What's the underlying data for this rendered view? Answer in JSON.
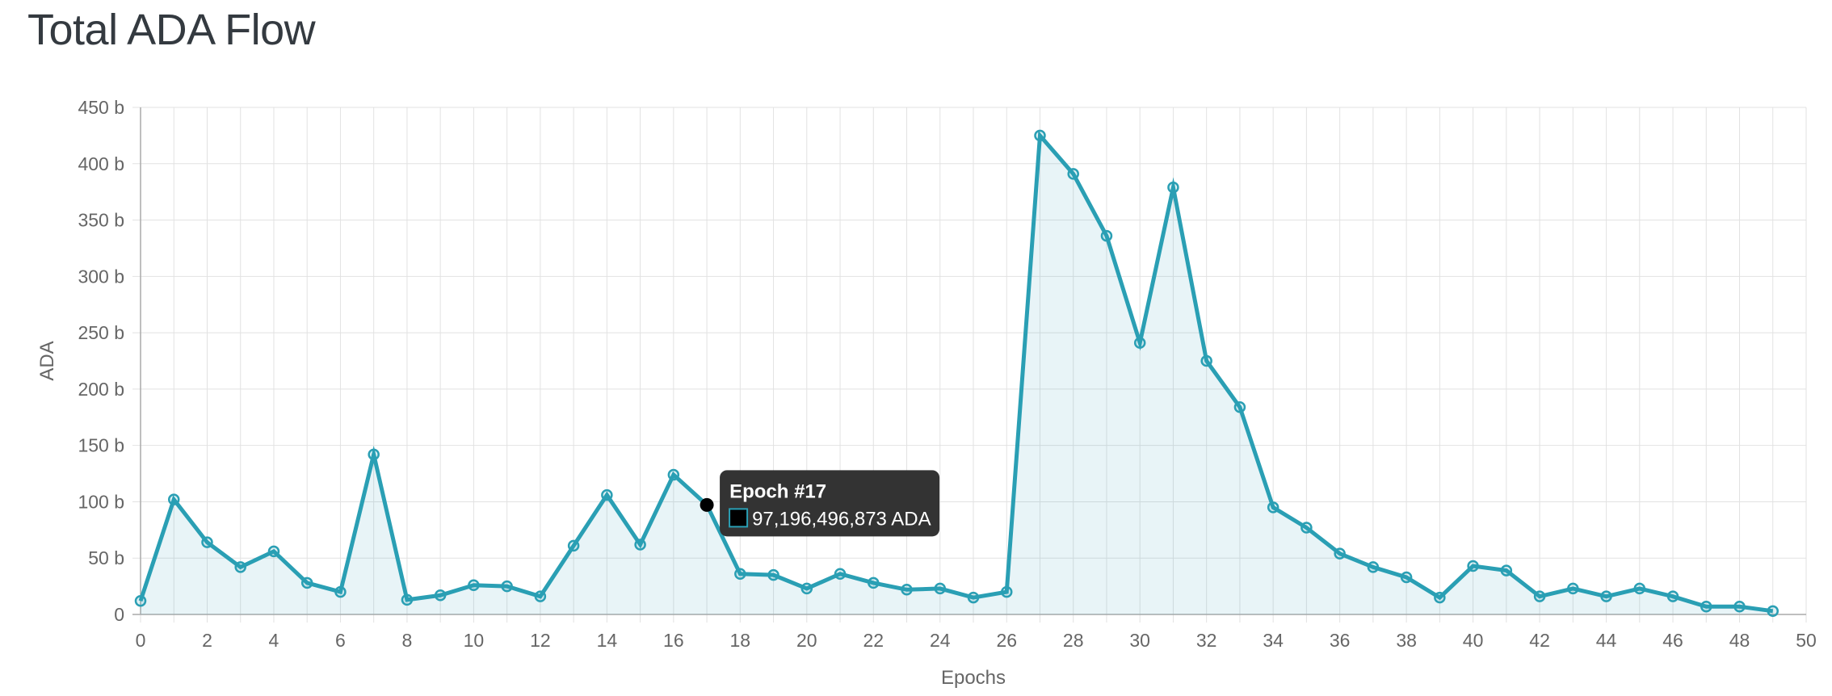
{
  "page": {
    "title": "Total ADA Flow"
  },
  "chart_data": {
    "type": "area",
    "title": "",
    "xlabel": "Epochs",
    "ylabel": "ADA",
    "x": [
      0,
      1,
      2,
      3,
      4,
      5,
      6,
      7,
      8,
      9,
      10,
      11,
      12,
      13,
      14,
      15,
      16,
      17,
      18,
      19,
      20,
      21,
      22,
      23,
      24,
      25,
      26,
      27,
      28,
      29,
      30,
      31,
      32,
      33,
      34,
      35,
      36,
      37,
      38,
      39,
      40,
      41,
      42,
      43,
      44,
      45,
      46,
      47,
      48,
      49
    ],
    "series": [
      {
        "values": [
          12,
          102,
          64,
          42,
          56,
          28,
          20,
          142,
          13,
          17,
          26,
          25,
          16,
          61,
          106,
          62,
          124,
          97.2,
          36,
          35,
          23,
          36,
          28,
          22,
          23,
          15,
          20,
          425,
          391,
          336,
          241,
          379,
          225,
          184,
          95,
          77,
          54,
          42,
          33,
          15,
          43,
          39,
          16,
          23,
          16,
          23,
          16,
          7,
          7,
          3
        ]
      }
    ],
    "xlim": [
      0,
      50
    ],
    "ylim": [
      0,
      450
    ],
    "xticks": [
      "0",
      "2",
      "4",
      "6",
      "8",
      "10",
      "12",
      "14",
      "16",
      "18",
      "20",
      "22",
      "24",
      "26",
      "28",
      "30",
      "32",
      "34",
      "36",
      "38",
      "40",
      "42",
      "44",
      "46",
      "48",
      "50"
    ],
    "yticks": [
      "0",
      "50 b",
      "100 b",
      "150 b",
      "200 b",
      "250 b",
      "300 b",
      "350 b",
      "400 b",
      "450 b"
    ],
    "grid": true,
    "colors": {
      "line": "#2a9fb4",
      "fill": "rgba(42,159,180,0.11)",
      "grid": "#e2e2e2",
      "tooltip_bg": "#333333"
    },
    "tooltip": {
      "index": 17,
      "title": "Epoch #17",
      "body": "97,196,496,873 ADA"
    }
  }
}
